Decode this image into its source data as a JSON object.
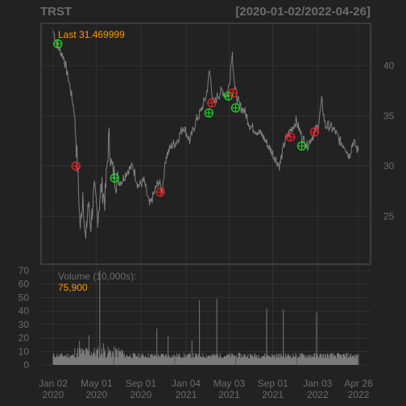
{
  "chart_data": {
    "type": "line",
    "title_left": "TRST",
    "title_right": "[2020-01-02/2022-04-26]",
    "price_panel": {
      "last_label": "Last 31.469999",
      "ylim": [
        21,
        44
      ],
      "y_ticks": [
        25,
        30,
        35,
        40
      ],
      "series": [
        {
          "x": "2020-01-02",
          "y": 43.5
        },
        {
          "x": "2020-01-15",
          "y": 42.0
        },
        {
          "x": "2020-02-01",
          "y": 40.8
        },
        {
          "x": "2020-02-15",
          "y": 38.5
        },
        {
          "x": "2020-03-01",
          "y": 35.5
        },
        {
          "x": "2020-03-10",
          "y": 30.0
        },
        {
          "x": "2020-03-18",
          "y": 23.5
        },
        {
          "x": "2020-03-25",
          "y": 27.5
        },
        {
          "x": "2020-04-01",
          "y": 22.0
        },
        {
          "x": "2020-04-08",
          "y": 26.5
        },
        {
          "x": "2020-04-15",
          "y": 24.0
        },
        {
          "x": "2020-04-25",
          "y": 27.5
        },
        {
          "x": "2020-05-05",
          "y": 25.0
        },
        {
          "x": "2020-05-15",
          "y": 28.0
        },
        {
          "x": "2020-05-25",
          "y": 26.5
        },
        {
          "x": "2020-06-05",
          "y": 33.0
        },
        {
          "x": "2020-06-12",
          "y": 30.0
        },
        {
          "x": "2020-06-25",
          "y": 28.5
        },
        {
          "x": "2020-07-10",
          "y": 28.5
        },
        {
          "x": "2020-07-25",
          "y": 29.5
        },
        {
          "x": "2020-08-10",
          "y": 30.0
        },
        {
          "x": "2020-08-25",
          "y": 28.0
        },
        {
          "x": "2020-09-10",
          "y": 28.5
        },
        {
          "x": "2020-09-25",
          "y": 26.0
        },
        {
          "x": "2020-10-05",
          "y": 27.0
        },
        {
          "x": "2020-10-20",
          "y": 28.5
        },
        {
          "x": "2020-10-30",
          "y": 27.5
        },
        {
          "x": "2020-11-10",
          "y": 31.0
        },
        {
          "x": "2020-11-25",
          "y": 32.0
        },
        {
          "x": "2020-12-10",
          "y": 32.5
        },
        {
          "x": "2020-12-28",
          "y": 34.0
        },
        {
          "x": "2021-01-15",
          "y": 32.5
        },
        {
          "x": "2021-02-01",
          "y": 34.5
        },
        {
          "x": "2021-02-15",
          "y": 35.5
        },
        {
          "x": "2021-03-01",
          "y": 37.0
        },
        {
          "x": "2021-03-10",
          "y": 39.5
        },
        {
          "x": "2021-03-22",
          "y": 36.0
        },
        {
          "x": "2021-04-01",
          "y": 37.0
        },
        {
          "x": "2021-04-15",
          "y": 37.5
        },
        {
          "x": "2021-04-28",
          "y": 37.0
        },
        {
          "x": "2021-05-05",
          "y": 38.5
        },
        {
          "x": "2021-05-12",
          "y": 41.5
        },
        {
          "x": "2021-05-20",
          "y": 37.5
        },
        {
          "x": "2021-06-01",
          "y": 36.0
        },
        {
          "x": "2021-06-15",
          "y": 35.5
        },
        {
          "x": "2021-07-01",
          "y": 34.0
        },
        {
          "x": "2021-07-20",
          "y": 33.5
        },
        {
          "x": "2021-08-05",
          "y": 33.0
        },
        {
          "x": "2021-08-20",
          "y": 32.0
        },
        {
          "x": "2021-09-05",
          "y": 31.0
        },
        {
          "x": "2021-09-20",
          "y": 30.0
        },
        {
          "x": "2021-10-05",
          "y": 32.5
        },
        {
          "x": "2021-10-20",
          "y": 33.5
        },
        {
          "x": "2021-11-05",
          "y": 34.5
        },
        {
          "x": "2021-11-20",
          "y": 33.0
        },
        {
          "x": "2021-12-05",
          "y": 32.0
        },
        {
          "x": "2021-12-20",
          "y": 33.0
        },
        {
          "x": "2022-01-05",
          "y": 34.0
        },
        {
          "x": "2022-01-15",
          "y": 36.5
        },
        {
          "x": "2022-01-25",
          "y": 34.0
        },
        {
          "x": "2022-02-05",
          "y": 34.0
        },
        {
          "x": "2022-02-20",
          "y": 33.5
        },
        {
          "x": "2022-03-05",
          "y": 32.5
        },
        {
          "x": "2022-03-20",
          "y": 32.0
        },
        {
          "x": "2022-04-01",
          "y": 31.0
        },
        {
          "x": "2022-04-12",
          "y": 32.5
        },
        {
          "x": "2022-04-26",
          "y": 31.47
        }
      ],
      "buy_markers": [
        {
          "x": "2020-01-15",
          "y": 42.2
        },
        {
          "x": "2020-06-20",
          "y": 28.8
        },
        {
          "x": "2021-03-08",
          "y": 35.3
        },
        {
          "x": "2021-05-01",
          "y": 37.0
        },
        {
          "x": "2021-05-21",
          "y": 35.8
        },
        {
          "x": "2021-11-20",
          "y": 32.0
        }
      ],
      "sell_markers": [
        {
          "x": "2020-03-05",
          "y": 30.0
        },
        {
          "x": "2020-10-25",
          "y": 27.4
        },
        {
          "x": "2021-03-16",
          "y": 36.3
        },
        {
          "x": "2021-05-14",
          "y": 37.3
        },
        {
          "x": "2021-10-20",
          "y": 32.9
        },
        {
          "x": "2021-12-25",
          "y": 33.4
        }
      ]
    },
    "volume_panel": {
      "label": "Volume (10,000s):",
      "last_value": "75,900",
      "ylim": [
        0,
        70
      ],
      "y_ticks": [
        0,
        10,
        20,
        30,
        40,
        50,
        60,
        70
      ],
      "baseline": 5,
      "spikes": [
        {
          "x": "2020-03-15",
          "y": 18
        },
        {
          "x": "2020-04-10",
          "y": 22
        },
        {
          "x": "2020-05-10",
          "y": 70
        },
        {
          "x": "2020-05-20",
          "y": 16
        },
        {
          "x": "2020-10-15",
          "y": 27
        },
        {
          "x": "2020-11-15",
          "y": 21
        },
        {
          "x": "2021-01-20",
          "y": 18
        },
        {
          "x": "2021-02-10",
          "y": 48
        },
        {
          "x": "2021-03-30",
          "y": 49
        },
        {
          "x": "2021-08-15",
          "y": 42
        },
        {
          "x": "2021-09-30",
          "y": 41
        },
        {
          "x": "2021-12-31",
          "y": 39
        }
      ]
    },
    "x_ticks": [
      {
        "x": "2020-01-02",
        "line1": "Jan 02",
        "line2": "2020"
      },
      {
        "x": "2020-05-01",
        "line1": "May 01",
        "line2": "2020"
      },
      {
        "x": "2020-09-01",
        "line1": "Sep 01",
        "line2": "2020"
      },
      {
        "x": "2021-01-04",
        "line1": "Jan 04",
        "line2": "2021"
      },
      {
        "x": "2021-05-03",
        "line1": "May 03",
        "line2": "2021"
      },
      {
        "x": "2021-09-01",
        "line1": "Sep 01",
        "line2": "2021"
      },
      {
        "x": "2022-01-03",
        "line1": "Jan 03",
        "line2": "2022"
      },
      {
        "x": "2022-04-26",
        "line1": "Apr 26",
        "line2": "2022"
      }
    ],
    "colors": {
      "background": "#222222",
      "grid": "#3a3a3a",
      "price_line": "#808080",
      "volume_bar": "#7a7a7a",
      "last_label": "#ff9900",
      "buy": "#22cc22",
      "sell": "#dd2222",
      "text": "#6b6b6b"
    }
  }
}
